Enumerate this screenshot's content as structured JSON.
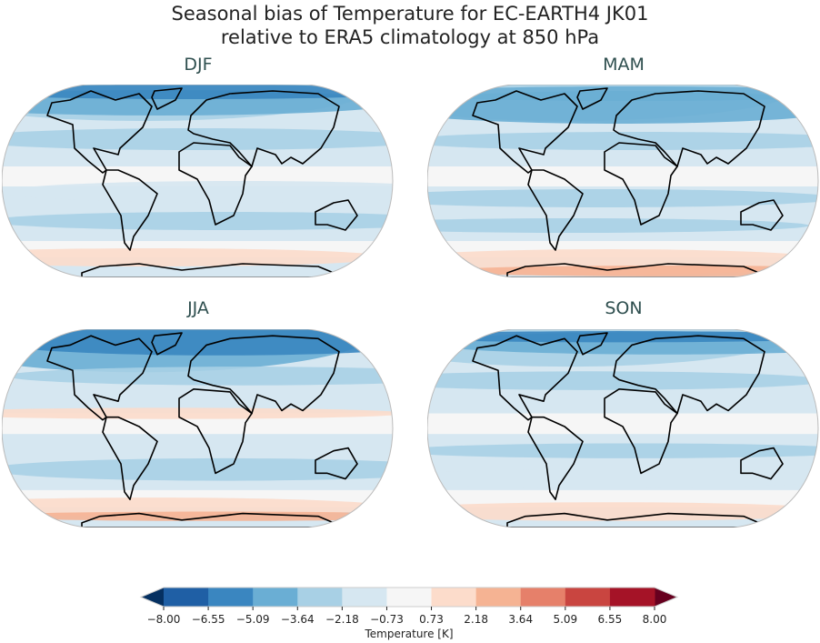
{
  "figure": {
    "title_line1": "Seasonal bias of Temperature for EC-EARTH4 JK01",
    "title_line2": "relative to ERA5 climatology at 850 hPa"
  },
  "panels": [
    {
      "label": "DJF"
    },
    {
      "label": "MAM"
    },
    {
      "label": "JJA"
    },
    {
      "label": "SON"
    }
  ],
  "colorbar": {
    "label": "Temperature [K]",
    "ticks": [
      "−8.00",
      "−6.55",
      "−5.09",
      "−3.64",
      "−2.18",
      "−0.73",
      "0.73",
      "2.18",
      "3.64",
      "5.09",
      "6.55",
      "8.00"
    ],
    "levels": [
      -8.0,
      -6.55,
      -5.09,
      -3.64,
      -2.18,
      -0.73,
      0.73,
      2.18,
      3.64,
      5.09,
      6.55,
      8.0
    ],
    "colors": [
      "#1f5fa5",
      "#3a86c0",
      "#6aaed4",
      "#a8d0e5",
      "#d6e7f1",
      "#f6f6f6",
      "#fcdccb",
      "#f5b393",
      "#e6806a",
      "#c94540",
      "#a51327"
    ],
    "extend_low_color": "#053061",
    "extend_high_color": "#67001f"
  }
}
